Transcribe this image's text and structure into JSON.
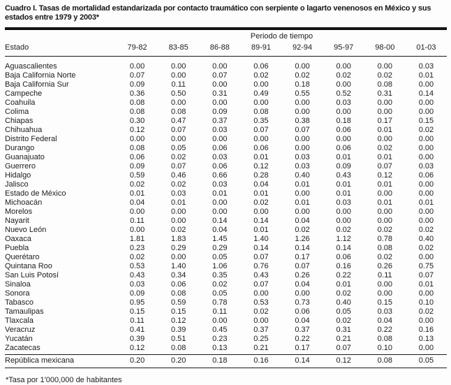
{
  "document": {
    "title": "Cuadro I. Tasas de mortalidad estandarizada por contacto traumático con serpiente o lagarto venenosos en México y sus estados entre 1979 y 2003*",
    "footnote": "*Tasa por 1'000,000 de habitantes"
  },
  "table": {
    "group_header": "Periodo de tiempo",
    "state_header": "Estado",
    "period_headers": [
      "79-82",
      "83-85",
      "86-88",
      "89-91",
      "92-94",
      "95-97",
      "98-00",
      "01-03"
    ],
    "rows": [
      {
        "state": "Aguascalientes",
        "values": [
          "0.00",
          "0.00",
          "0.00",
          "0.06",
          "0.00",
          "0.00",
          "0.00",
          "0.03"
        ]
      },
      {
        "state": "Baja California Norte",
        "values": [
          "0.07",
          "0.00",
          "0.07",
          "0.02",
          "0.02",
          "0.02",
          "0.02",
          "0.01"
        ]
      },
      {
        "state": "Baja California Sur",
        "values": [
          "0.09",
          "0.11",
          "0.00",
          "0.00",
          "0.18",
          "0.00",
          "0.08",
          "0.00"
        ]
      },
      {
        "state": "Campeche",
        "values": [
          "0.36",
          "0.50",
          "0.31",
          "0.49",
          "0.55",
          "0.52",
          "0.31",
          "0.14"
        ]
      },
      {
        "state": "Coahuila",
        "values": [
          "0.08",
          "0.00",
          "0.00",
          "0.00",
          "0.00",
          "0.03",
          "0.00",
          "0.00"
        ]
      },
      {
        "state": "Colima",
        "values": [
          "0.08",
          "0.08",
          "0.09",
          "0.08",
          "0.00",
          "0.00",
          "0.00",
          "0.00"
        ]
      },
      {
        "state": "Chiapas",
        "values": [
          "0.30",
          "0.47",
          "0.37",
          "0.35",
          "0.38",
          "0.18",
          "0.17",
          "0.15"
        ]
      },
      {
        "state": "Chihuahua",
        "values": [
          "0.12",
          "0.07",
          "0.03",
          "0.07",
          "0.07",
          "0.06",
          "0.01",
          "0.02"
        ]
      },
      {
        "state": "Distrito Federal",
        "values": [
          "0.00",
          "0.00",
          "0.00",
          "0.00",
          "0.00",
          "0.00",
          "0.00",
          "0.00"
        ]
      },
      {
        "state": "Durango",
        "values": [
          "0.08",
          "0.05",
          "0.06",
          "0.06",
          "0.00",
          "0.06",
          "0.02",
          "0.00"
        ]
      },
      {
        "state": "Guanajuato",
        "values": [
          "0.06",
          "0.02",
          "0.03",
          "0.01",
          "0.03",
          "0.01",
          "0.01",
          "0.00"
        ]
      },
      {
        "state": "Guerrero",
        "values": [
          "0.09",
          "0.07",
          "0.06",
          "0.12",
          "0.03",
          "0.09",
          "0.07",
          "0.03"
        ]
      },
      {
        "state": "Hidalgo",
        "values": [
          "0.59",
          "0.46",
          "0.66",
          "0.28",
          "0.40",
          "0.43",
          "0.12",
          "0.06"
        ]
      },
      {
        "state": "Jalisco",
        "values": [
          "0.02",
          "0.02",
          "0.03",
          "0.04",
          "0.01",
          "0.01",
          "0.01",
          "0.00"
        ]
      },
      {
        "state": "Estado de México",
        "values": [
          "0.01",
          "0.03",
          "0.01",
          "0.01",
          "0.00",
          "0.01",
          "0.00",
          "0.00"
        ]
      },
      {
        "state": "Michoacán",
        "values": [
          "0.04",
          "0.01",
          "0.00",
          "0.02",
          "0.01",
          "0.03",
          "0.01",
          "0.01"
        ]
      },
      {
        "state": "Morelos",
        "values": [
          "0.00",
          "0.00",
          "0.00",
          "0.00",
          "0.00",
          "0.00",
          "0.00",
          "0.00"
        ]
      },
      {
        "state": "Nayarit",
        "values": [
          "0.11",
          "0.00",
          "0.14",
          "0.14",
          "0.04",
          "0.00",
          "0.00",
          "0.00"
        ]
      },
      {
        "state": "Nuevo León",
        "values": [
          "0.00",
          "0.02",
          "0.04",
          "0.01",
          "0.02",
          "0.02",
          "0.02",
          "0.02"
        ]
      },
      {
        "state": "Oaxaca",
        "values": [
          "1.81",
          "1.83",
          "1.45",
          "1.40",
          "1.26",
          "1.12",
          "0.78",
          "0.40"
        ]
      },
      {
        "state": "Puebla",
        "values": [
          "0.23",
          "0.29",
          "0.29",
          "0.14",
          "0.14",
          "0.14",
          "0.08",
          "0.02"
        ]
      },
      {
        "state": "Querétaro",
        "values": [
          "0.02",
          "0.00",
          "0.05",
          "0.07",
          "0.17",
          "0.06",
          "0.02",
          "0.00"
        ]
      },
      {
        "state": "Quintana Roo",
        "values": [
          "0.53",
          "1.40",
          "1.06",
          "0.76",
          "0.07",
          "0.16",
          "0.26",
          "0.75"
        ]
      },
      {
        "state": "San Luis Potosí",
        "values": [
          "0.43",
          "0.34",
          "0.35",
          "0.43",
          "0.26",
          "0.22",
          "0.11",
          "0.07"
        ]
      },
      {
        "state": "Sinaloa",
        "values": [
          "0.03",
          "0.06",
          "0.02",
          "0.07",
          "0.04",
          "0.01",
          "0.00",
          "0.01"
        ]
      },
      {
        "state": "Sonora",
        "values": [
          "0.09",
          "0.08",
          "0.05",
          "0.00",
          "0.00",
          "0.02",
          "0.00",
          "0.00"
        ]
      },
      {
        "state": "Tabasco",
        "values": [
          "0.95",
          "0.59",
          "0.78",
          "0.53",
          "0.73",
          "0.40",
          "0.15",
          "0.10"
        ]
      },
      {
        "state": "Tamaulipas",
        "values": [
          "0.15",
          "0.15",
          "0.11",
          "0.02",
          "0.06",
          "0.05",
          "0.03",
          "0.02"
        ]
      },
      {
        "state": "Tlaxcala",
        "values": [
          "0.11",
          "0.12",
          "0.00",
          "0.00",
          "0.04",
          "0.02",
          "0.04",
          "0.00"
        ]
      },
      {
        "state": "Veracruz",
        "values": [
          "0.41",
          "0.39",
          "0.45",
          "0.37",
          "0.37",
          "0.31",
          "0.22",
          "0.16"
        ]
      },
      {
        "state": "Yucatán",
        "values": [
          "0.39",
          "0.51",
          "0.23",
          "0.25",
          "0.22",
          "0.21",
          "0.08",
          "0.13"
        ]
      },
      {
        "state": "Zacatecas",
        "values": [
          "0.12",
          "0.08",
          "0.13",
          "0.21",
          "0.17",
          "0.07",
          "0.10",
          "0.00"
        ]
      }
    ],
    "summary_row": {
      "state": "República mexicana",
      "values": [
        "0.20",
        "0.20",
        "0.18",
        "0.16",
        "0.14",
        "0.12",
        "0.08",
        "0.05"
      ]
    }
  },
  "chart_data": {
    "type": "table",
    "title": "Cuadro I. Tasas de mortalidad estandarizada por contacto traumático con serpiente o lagarto venenosos en México y sus estados entre 1979 y 2003*",
    "categories": [
      "79-82",
      "83-85",
      "86-88",
      "89-91",
      "92-94",
      "95-97",
      "98-00",
      "01-03"
    ],
    "xlabel": "Periodo de tiempo",
    "ylabel": "Tasa por 1'000,000 de habitantes",
    "series": [
      {
        "name": "Aguascalientes",
        "values": [
          0.0,
          0.0,
          0.0,
          0.06,
          0.0,
          0.0,
          0.0,
          0.03
        ]
      },
      {
        "name": "Baja California Norte",
        "values": [
          0.07,
          0.0,
          0.07,
          0.02,
          0.02,
          0.02,
          0.02,
          0.01
        ]
      },
      {
        "name": "Baja California Sur",
        "values": [
          0.09,
          0.11,
          0.0,
          0.0,
          0.18,
          0.0,
          0.08,
          0.0
        ]
      },
      {
        "name": "Campeche",
        "values": [
          0.36,
          0.5,
          0.31,
          0.49,
          0.55,
          0.52,
          0.31,
          0.14
        ]
      },
      {
        "name": "Coahuila",
        "values": [
          0.08,
          0.0,
          0.0,
          0.0,
          0.0,
          0.03,
          0.0,
          0.0
        ]
      },
      {
        "name": "Colima",
        "values": [
          0.08,
          0.08,
          0.09,
          0.08,
          0.0,
          0.0,
          0.0,
          0.0
        ]
      },
      {
        "name": "Chiapas",
        "values": [
          0.3,
          0.47,
          0.37,
          0.35,
          0.38,
          0.18,
          0.17,
          0.15
        ]
      },
      {
        "name": "Chihuahua",
        "values": [
          0.12,
          0.07,
          0.03,
          0.07,
          0.07,
          0.06,
          0.01,
          0.02
        ]
      },
      {
        "name": "Distrito Federal",
        "values": [
          0.0,
          0.0,
          0.0,
          0.0,
          0.0,
          0.0,
          0.0,
          0.0
        ]
      },
      {
        "name": "Durango",
        "values": [
          0.08,
          0.05,
          0.06,
          0.06,
          0.0,
          0.06,
          0.02,
          0.0
        ]
      },
      {
        "name": "Guanajuato",
        "values": [
          0.06,
          0.02,
          0.03,
          0.01,
          0.03,
          0.01,
          0.01,
          0.0
        ]
      },
      {
        "name": "Guerrero",
        "values": [
          0.09,
          0.07,
          0.06,
          0.12,
          0.03,
          0.09,
          0.07,
          0.03
        ]
      },
      {
        "name": "Hidalgo",
        "values": [
          0.59,
          0.46,
          0.66,
          0.28,
          0.4,
          0.43,
          0.12,
          0.06
        ]
      },
      {
        "name": "Jalisco",
        "values": [
          0.02,
          0.02,
          0.03,
          0.04,
          0.01,
          0.01,
          0.01,
          0.0
        ]
      },
      {
        "name": "Estado de México",
        "values": [
          0.01,
          0.03,
          0.01,
          0.01,
          0.0,
          0.01,
          0.0,
          0.0
        ]
      },
      {
        "name": "Michoacán",
        "values": [
          0.04,
          0.01,
          0.0,
          0.02,
          0.01,
          0.03,
          0.01,
          0.01
        ]
      },
      {
        "name": "Morelos",
        "values": [
          0.0,
          0.0,
          0.0,
          0.0,
          0.0,
          0.0,
          0.0,
          0.0
        ]
      },
      {
        "name": "Nayarit",
        "values": [
          0.11,
          0.0,
          0.14,
          0.14,
          0.04,
          0.0,
          0.0,
          0.0
        ]
      },
      {
        "name": "Nuevo León",
        "values": [
          0.0,
          0.02,
          0.04,
          0.01,
          0.02,
          0.02,
          0.02,
          0.02
        ]
      },
      {
        "name": "Oaxaca",
        "values": [
          1.81,
          1.83,
          1.45,
          1.4,
          1.26,
          1.12,
          0.78,
          0.4
        ]
      },
      {
        "name": "Puebla",
        "values": [
          0.23,
          0.29,
          0.29,
          0.14,
          0.14,
          0.14,
          0.08,
          0.02
        ]
      },
      {
        "name": "Querétaro",
        "values": [
          0.02,
          0.0,
          0.05,
          0.07,
          0.17,
          0.06,
          0.02,
          0.0
        ]
      },
      {
        "name": "Quintana Roo",
        "values": [
          0.53,
          1.4,
          1.06,
          0.76,
          0.07,
          0.16,
          0.26,
          0.75
        ]
      },
      {
        "name": "San Luis Potosí",
        "values": [
          0.43,
          0.34,
          0.35,
          0.43,
          0.26,
          0.22,
          0.11,
          0.07
        ]
      },
      {
        "name": "Sinaloa",
        "values": [
          0.03,
          0.06,
          0.02,
          0.07,
          0.04,
          0.01,
          0.0,
          0.01
        ]
      },
      {
        "name": "Sonora",
        "values": [
          0.09,
          0.08,
          0.05,
          0.0,
          0.0,
          0.02,
          0.0,
          0.0
        ]
      },
      {
        "name": "Tabasco",
        "values": [
          0.95,
          0.59,
          0.78,
          0.53,
          0.73,
          0.4,
          0.15,
          0.1
        ]
      },
      {
        "name": "Tamaulipas",
        "values": [
          0.15,
          0.15,
          0.11,
          0.02,
          0.06,
          0.05,
          0.03,
          0.02
        ]
      },
      {
        "name": "Tlaxcala",
        "values": [
          0.11,
          0.12,
          0.0,
          0.0,
          0.04,
          0.02,
          0.04,
          0.0
        ]
      },
      {
        "name": "Veracruz",
        "values": [
          0.41,
          0.39,
          0.45,
          0.37,
          0.37,
          0.31,
          0.22,
          0.16
        ]
      },
      {
        "name": "Yucatán",
        "values": [
          0.39,
          0.51,
          0.23,
          0.25,
          0.22,
          0.21,
          0.08,
          0.13
        ]
      },
      {
        "name": "Zacatecas",
        "values": [
          0.12,
          0.08,
          0.13,
          0.21,
          0.17,
          0.07,
          0.1,
          0.0
        ]
      },
      {
        "name": "República mexicana",
        "values": [
          0.2,
          0.2,
          0.18,
          0.16,
          0.14,
          0.12,
          0.08,
          0.05
        ]
      }
    ]
  }
}
